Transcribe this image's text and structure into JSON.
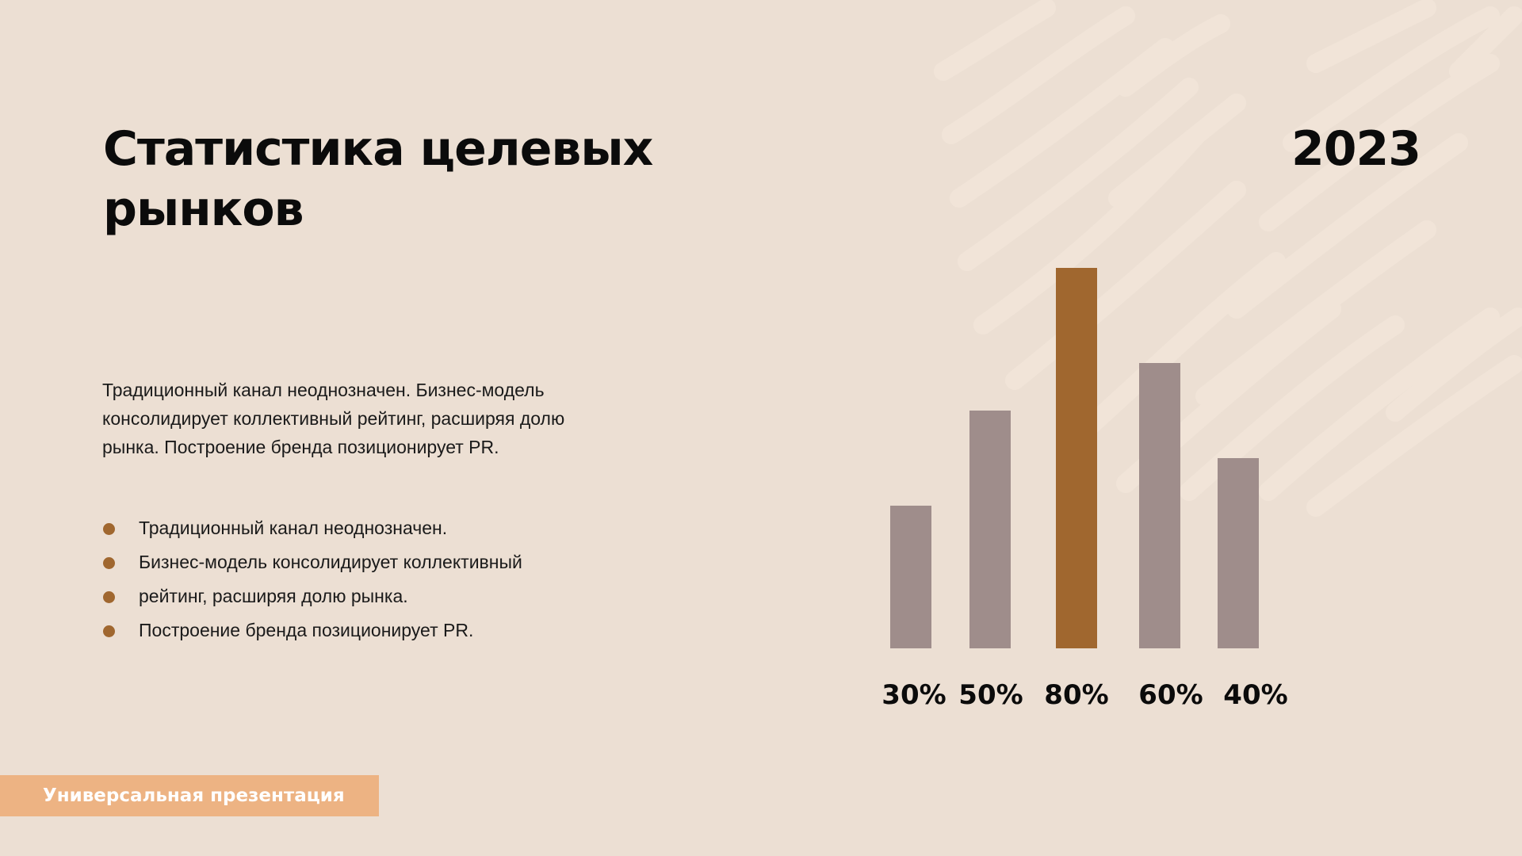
{
  "slide": {
    "title": "Статистика целевых рынков",
    "year": "2023",
    "description": "Традиционный канал неоднозначен. Бизнес-модель консолидирует коллективный рейтинг, расширяя долю рынка. Построение бренда позиционирует PR.",
    "bullets": [
      "Традиционный канал неоднозначен.",
      "Бизнес-модель консолидирует коллективный",
      "рейтинг, расширяя долю рынка.",
      "Построение бренда позиционирует PR."
    ],
    "footer": "Универсальная презентация"
  },
  "colors": {
    "background": "#ecdfd3",
    "accent": "#a0672f",
    "bar": "#9f8d8b",
    "footer_badge": "#edb383"
  },
  "chart_data": {
    "type": "bar",
    "values": [
      30,
      50,
      80,
      60,
      40
    ],
    "data_labels": [
      "30%",
      "50%",
      "80%",
      "60%",
      "40%"
    ],
    "highlight_index": 2,
    "axes_visible": false,
    "grid": false
  }
}
